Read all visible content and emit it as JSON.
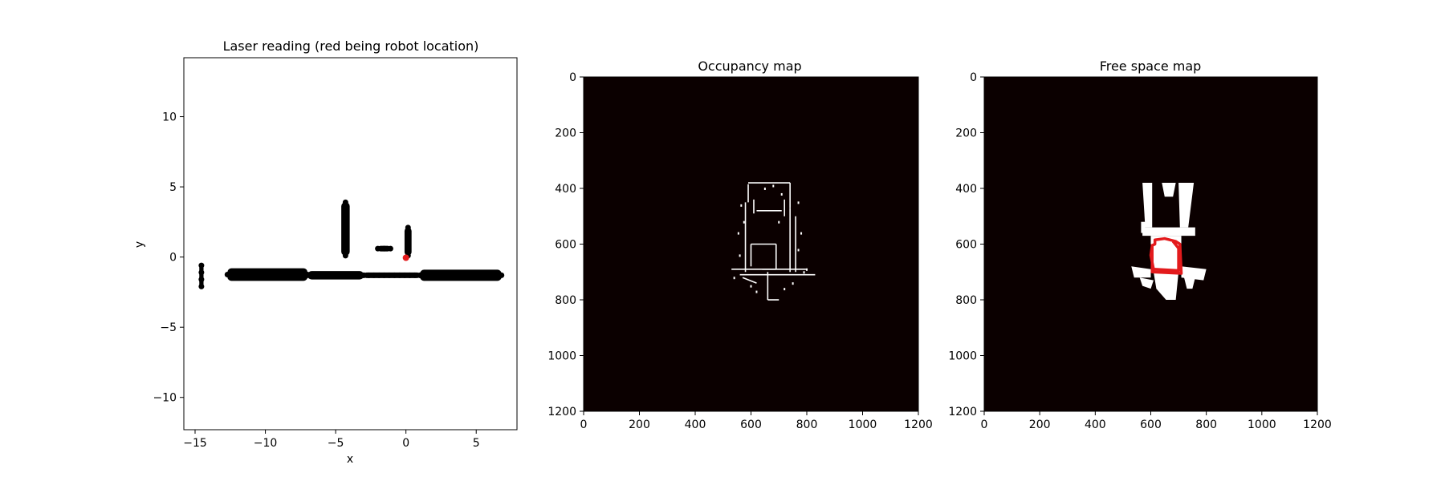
{
  "chart_data": [
    {
      "type": "scatter",
      "title": "Laser reading (red being robot location)",
      "xlabel": "x",
      "ylabel": "y",
      "xlim": [
        -15.8,
        7.9
      ],
      "ylim": [
        -12.3,
        14.2
      ],
      "xticks": [
        -15,
        -10,
        -5,
        0,
        5
      ],
      "yticks": [
        -10,
        -5,
        0,
        5,
        10
      ],
      "xticklabels": [
        "−15",
        "−10",
        "−5",
        "0",
        "5"
      ],
      "yticklabels": [
        "−10",
        "−5",
        "0",
        "5",
        "10"
      ],
      "grid": false,
      "series": [
        {
          "color": "#000000",
          "clusters": [
            {
              "x": [
                -14.7,
                -14.4
              ],
              "y": [
                -2.1,
                -0.6
              ]
            },
            {
              "x": [
                -12.7,
                -7.0
              ],
              "y": [
                -1.7,
                -0.8
              ]
            },
            {
              "x": [
                -7.0,
                -3.0
              ],
              "y": [
                -1.6,
                -1.0
              ]
            },
            {
              "x": [
                -3.0,
                1.0
              ],
              "y": [
                -1.5,
                -1.1
              ]
            },
            {
              "x": [
                1.0,
                6.8
              ],
              "y": [
                -1.7,
                -0.9
              ]
            },
            {
              "x": [
                -4.6,
                -4.0
              ],
              "y": [
                0.1,
                3.9
              ]
            },
            {
              "x": [
                -2.0,
                -1.1
              ],
              "y": [
                0.4,
                0.8
              ]
            },
            {
              "x": [
                -0.1,
                0.4
              ],
              "y": [
                0.1,
                2.1
              ]
            }
          ]
        },
        {
          "color": "#e31a1c",
          "points": [
            [
              0.0,
              -0.05
            ]
          ]
        }
      ]
    },
    {
      "type": "heatmap",
      "title": "Occupancy map",
      "xlim": [
        0,
        1200
      ],
      "ylim": [
        1200,
        0
      ],
      "xticks": [
        0,
        200,
        400,
        600,
        800,
        1000,
        1200
      ],
      "yticks": [
        0,
        200,
        400,
        600,
        800,
        1000,
        1200
      ],
      "background_color": "#0b0000",
      "foreground_color": "#ffffff",
      "features": {
        "lines": [
          [
            [
              590,
              380
            ],
            [
              740,
              380
            ]
          ],
          [
            [
              590,
              385
            ],
            [
              590,
              450
            ]
          ],
          [
            [
              740,
              380
            ],
            [
              740,
              470
            ]
          ],
          [
            [
              620,
              480
            ],
            [
              710,
              480
            ]
          ],
          [
            [
              610,
              440
            ],
            [
              610,
              490
            ]
          ],
          [
            [
              720,
              440
            ],
            [
              720,
              500
            ]
          ],
          [
            [
              580,
              450
            ],
            [
              580,
              700
            ]
          ],
          [
            [
              740,
              470
            ],
            [
              740,
              700
            ]
          ],
          [
            [
              600,
              600
            ],
            [
              690,
              600
            ]
          ],
          [
            [
              600,
              600
            ],
            [
              600,
              680
            ]
          ],
          [
            [
              690,
              600
            ],
            [
              690,
              690
            ]
          ],
          [
            [
              530,
              690
            ],
            [
              800,
              690
            ]
          ],
          [
            [
              560,
              710
            ],
            [
              830,
              710
            ]
          ],
          [
            [
              660,
              700
            ],
            [
              660,
              800
            ]
          ],
          [
            [
              660,
              800
            ],
            [
              700,
              800
            ]
          ],
          [
            [
              640,
              690
            ],
            [
              690,
              690
            ]
          ],
          [
            [
              760,
              500
            ],
            [
              760,
              700
            ]
          ],
          [
            [
              570,
              720
            ],
            [
              620,
              740
            ]
          ]
        ],
        "dots": [
          [
            565,
            460
          ],
          [
            575,
            520
          ],
          [
            555,
            560
          ],
          [
            560,
            640
          ],
          [
            770,
            450
          ],
          [
            780,
            560
          ],
          [
            770,
            620
          ],
          [
            600,
            750
          ],
          [
            620,
            770
          ],
          [
            720,
            760
          ],
          [
            750,
            740
          ],
          [
            790,
            700
          ],
          [
            540,
            720
          ],
          [
            680,
            390
          ],
          [
            710,
            420
          ],
          [
            650,
            400
          ],
          [
            800,
            690
          ],
          [
            700,
            520
          ]
        ]
      }
    },
    {
      "type": "heatmap",
      "title": "Free space map",
      "xlim": [
        0,
        1200
      ],
      "ylim": [
        1200,
        0
      ],
      "xticks": [
        0,
        200,
        400,
        600,
        800,
        1000,
        1200
      ],
      "yticks": [
        0,
        200,
        400,
        600,
        800,
        1000,
        1200
      ],
      "background_color": "#0b0000",
      "foreground_color": "#ffffff",
      "path_color": "#e31a1c",
      "features": {
        "regions": [
          [
            [
              570,
              380
            ],
            [
              605,
              380
            ],
            [
              605,
              540
            ],
            [
              580,
              540
            ]
          ],
          [
            [
              700,
              380
            ],
            [
              755,
              380
            ],
            [
              735,
              540
            ],
            [
              705,
              540
            ]
          ],
          [
            [
              640,
              380
            ],
            [
              690,
              380
            ],
            [
              680,
              430
            ],
            [
              650,
              430
            ]
          ],
          [
            [
              570,
              540
            ],
            [
              760,
              540
            ],
            [
              760,
              570
            ],
            [
              570,
              570
            ]
          ],
          [
            [
              600,
              570
            ],
            [
              710,
              570
            ],
            [
              710,
              700
            ],
            [
              600,
              700
            ]
          ],
          [
            [
              530,
              680
            ],
            [
              600,
              690
            ],
            [
              600,
              720
            ],
            [
              540,
              720
            ]
          ],
          [
            [
              710,
              680
            ],
            [
              800,
              690
            ],
            [
              790,
              730
            ],
            [
              710,
              720
            ]
          ],
          [
            [
              610,
              700
            ],
            [
              700,
              700
            ],
            [
              690,
              800
            ],
            [
              655,
              800
            ],
            [
              620,
              760
            ]
          ],
          [
            [
              560,
              720
            ],
            [
              610,
              730
            ],
            [
              600,
              760
            ],
            [
              570,
              750
            ]
          ],
          [
            [
              720,
              720
            ],
            [
              760,
              720
            ],
            [
              750,
              760
            ],
            [
              730,
              760
            ]
          ],
          [
            [
              565,
              520
            ],
            [
              580,
              520
            ],
            [
              580,
              560
            ],
            [
              565,
              560
            ]
          ]
        ],
        "path": [
          [
            605,
            600
          ],
          [
            605,
            700
          ],
          [
            710,
            705
          ],
          [
            705,
            600
          ],
          [
            690,
            590
          ],
          [
            650,
            580
          ],
          [
            615,
            585
          ],
          [
            615,
            600
          ],
          [
            605,
            605
          ],
          [
            600,
            640
          ],
          [
            610,
            690
          ],
          [
            700,
            695
          ],
          [
            700,
            615
          ],
          [
            680,
            590
          ]
        ]
      }
    }
  ]
}
